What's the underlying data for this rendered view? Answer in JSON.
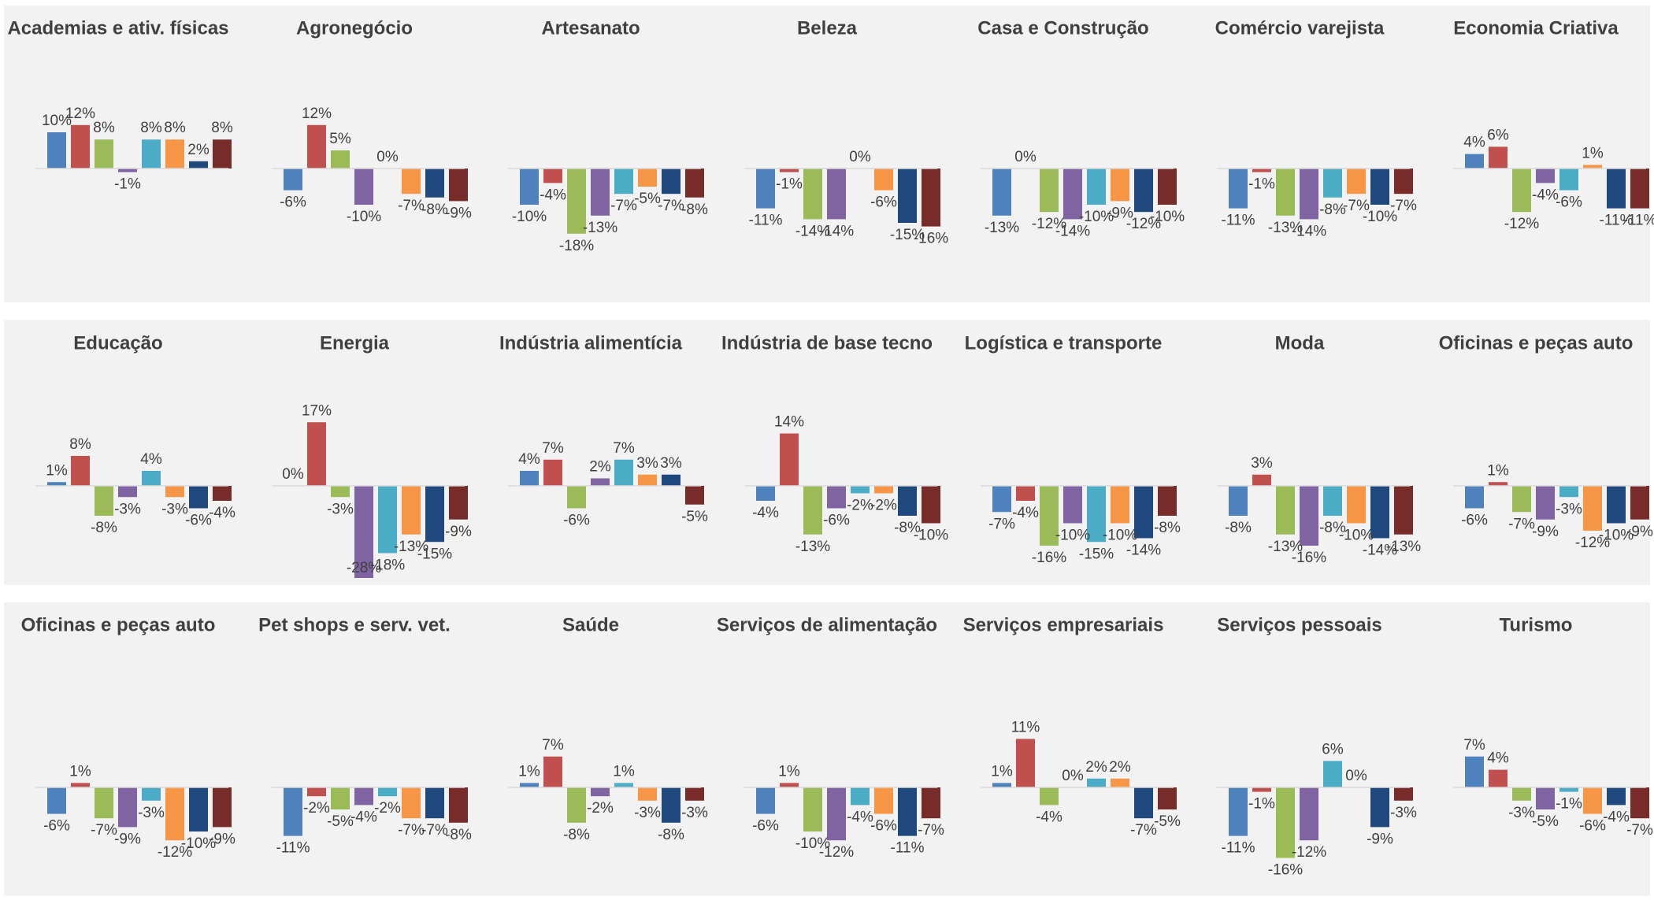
{
  "chart_data": [
    {
      "type": "bar",
      "title": "Academias e ativ. físicas",
      "values": [
        10,
        12,
        8,
        -1,
        8,
        8,
        2,
        8
      ],
      "value_labels": [
        "10%",
        "12%",
        "8%",
        "-1%",
        "8%",
        "8%",
        "2%",
        "8%"
      ],
      "colors": [
        "#4f81bd",
        "#c0504d",
        "#9bbb59",
        "#8064a2",
        "#4bacc6",
        "#f79646",
        "#1f497d",
        "#772c2a"
      ]
    },
    {
      "type": "bar",
      "title": "Agronegócio",
      "values": [
        -6,
        12,
        5,
        -10,
        0,
        -7,
        -8,
        -9
      ],
      "value_labels": [
        "-6%",
        "12%",
        "5%",
        "-10%",
        "0%",
        "-7%",
        "-8%",
        "-9%"
      ],
      "colors": [
        "#4f81bd",
        "#c0504d",
        "#9bbb59",
        "#8064a2",
        "#4bacc6",
        "#f79646",
        "#1f497d",
        "#772c2a"
      ]
    },
    {
      "type": "bar",
      "title": "Artesanato",
      "values": [
        -10,
        -4,
        -18,
        -13,
        -7,
        -5,
        -7,
        -8
      ],
      "value_labels": [
        "-10%",
        "-4%",
        "-18%",
        "-13%",
        "-7%",
        "-5%",
        "-7%",
        "-8%"
      ],
      "colors": [
        "#4f81bd",
        "#c0504d",
        "#9bbb59",
        "#8064a2",
        "#4bacc6",
        "#f79646",
        "#1f497d",
        "#772c2a"
      ]
    },
    {
      "type": "bar",
      "title": "Beleza",
      "values": [
        -11,
        -1,
        -14,
        -14,
        0,
        -6,
        -15,
        -16
      ],
      "value_labels": [
        "-11%",
        "-1%",
        "-14%",
        "-14%",
        "0%",
        "-6%",
        "-15%",
        "-16%"
      ],
      "colors": [
        "#4f81bd",
        "#c0504d",
        "#9bbb59",
        "#8064a2",
        "#4bacc6",
        "#f79646",
        "#1f497d",
        "#772c2a"
      ]
    },
    {
      "type": "bar",
      "title": "Casa e Construção",
      "values": [
        -13,
        0,
        -12,
        -14,
        -10,
        -9,
        -12,
        -10
      ],
      "value_labels": [
        "-13%",
        "0%",
        "-12%",
        "-14%",
        "-10%",
        "-9%",
        "-12%",
        "-10%"
      ],
      "colors": [
        "#4f81bd",
        "#c0504d",
        "#9bbb59",
        "#8064a2",
        "#4bacc6",
        "#f79646",
        "#1f497d",
        "#772c2a"
      ]
    },
    {
      "type": "bar",
      "title": "Comércio varejista",
      "values": [
        -11,
        -1,
        -13,
        -14,
        -8,
        -7,
        -10,
        -7
      ],
      "value_labels": [
        "-11%",
        "-1%",
        "-13%",
        "-14%",
        "-8%",
        "-7%",
        "-10%",
        "-7%"
      ],
      "colors": [
        "#4f81bd",
        "#c0504d",
        "#9bbb59",
        "#8064a2",
        "#4bacc6",
        "#f79646",
        "#1f497d",
        "#772c2a"
      ]
    },
    {
      "type": "bar",
      "title": "Economia Criativa",
      "values": [
        4,
        6,
        -12,
        -4,
        -6,
        1,
        -11,
        -11
      ],
      "value_labels": [
        "4%",
        "6%",
        "-12%",
        "-4%",
        "-6%",
        "1%",
        "-11%",
        "-11%"
      ],
      "colors": [
        "#4f81bd",
        "#c0504d",
        "#9bbb59",
        "#8064a2",
        "#4bacc6",
        "#f79646",
        "#1f497d",
        "#772c2a"
      ]
    },
    {
      "type": "bar",
      "title": "Educação",
      "values": [
        1,
        8,
        -8,
        -3,
        4,
        -3,
        -6,
        -4
      ],
      "value_labels": [
        "1%",
        "8%",
        "-8%",
        "-3%",
        "4%",
        "-3%",
        "-6%",
        "-4%"
      ],
      "colors": [
        "#4f81bd",
        "#c0504d",
        "#9bbb59",
        "#8064a2",
        "#4bacc6",
        "#f79646",
        "#1f497d",
        "#772c2a"
      ]
    },
    {
      "type": "bar",
      "title": "Energia",
      "values": [
        0,
        17,
        -3,
        -28,
        -18,
        -13,
        -15,
        -9
      ],
      "value_labels": [
        "0%",
        "17%",
        "-3%",
        "-28%",
        "-18%",
        "-13%",
        "-15%",
        "-9%"
      ],
      "colors": [
        "#4f81bd",
        "#c0504d",
        "#9bbb59",
        "#8064a2",
        "#4bacc6",
        "#f79646",
        "#1f497d",
        "#772c2a"
      ]
    },
    {
      "type": "bar",
      "title": "Indústria alimentícia",
      "values": [
        4,
        7,
        -6,
        2,
        7,
        3,
        3,
        -5
      ],
      "value_labels": [
        "4%",
        "7%",
        "-6%",
        "2%",
        "7%",
        "3%",
        "3%",
        "-5%"
      ],
      "colors": [
        "#4f81bd",
        "#c0504d",
        "#9bbb59",
        "#8064a2",
        "#4bacc6",
        "#f79646",
        "#1f497d",
        "#772c2a"
      ]
    },
    {
      "type": "bar",
      "title": "Indústria de base tecno",
      "values": [
        -4,
        14,
        -13,
        -6,
        -2,
        -2,
        -8,
        -10
      ],
      "value_labels": [
        "-4%",
        "14%",
        "-13%",
        "-6%",
        "-2%",
        "-2%",
        "-8%",
        "-10%"
      ],
      "colors": [
        "#4f81bd",
        "#c0504d",
        "#9bbb59",
        "#8064a2",
        "#4bacc6",
        "#f79646",
        "#1f497d",
        "#772c2a"
      ]
    },
    {
      "type": "bar",
      "title": "Logística e transporte",
      "values": [
        -7,
        -4,
        -16,
        -10,
        -15,
        -10,
        -14,
        -8
      ],
      "value_labels": [
        "-7%",
        "-4%",
        "-16%",
        "-10%",
        "-15%",
        "-10%",
        "-14%",
        "-8%"
      ],
      "colors": [
        "#4f81bd",
        "#c0504d",
        "#9bbb59",
        "#8064a2",
        "#4bacc6",
        "#f79646",
        "#1f497d",
        "#772c2a"
      ]
    },
    {
      "type": "bar",
      "title": "Moda",
      "values": [
        -8,
        3,
        -13,
        -16,
        -8,
        -10,
        -14,
        -13
      ],
      "value_labels": [
        "-8%",
        "3%",
        "-13%",
        "-16%",
        "-8%",
        "-10%",
        "-14%",
        "-13%"
      ],
      "colors": [
        "#4f81bd",
        "#c0504d",
        "#9bbb59",
        "#8064a2",
        "#4bacc6",
        "#f79646",
        "#1f497d",
        "#772c2a"
      ]
    },
    {
      "type": "bar",
      "title": "Oficinas e peças auto",
      "values": [
        -6,
        1,
        -7,
        -9,
        -3,
        -12,
        -10,
        -9
      ],
      "value_labels": [
        "-6%",
        "1%",
        "-7%",
        "-9%",
        "-3%",
        "-12%",
        "-10%",
        "-9%"
      ],
      "colors": [
        "#4f81bd",
        "#c0504d",
        "#9bbb59",
        "#8064a2",
        "#4bacc6",
        "#f79646",
        "#1f497d",
        "#772c2a"
      ]
    },
    {
      "type": "bar",
      "title": "Oficinas e peças auto",
      "values": [
        -6,
        1,
        -7,
        -9,
        -3,
        -12,
        -10,
        -9
      ],
      "value_labels": [
        "-6%",
        "1%",
        "-7%",
        "-9%",
        "-3%",
        "-12%",
        "-10%",
        "-9%"
      ],
      "colors": [
        "#4f81bd",
        "#c0504d",
        "#9bbb59",
        "#8064a2",
        "#4bacc6",
        "#f79646",
        "#1f497d",
        "#772c2a"
      ]
    },
    {
      "type": "bar",
      "title": "Pet shops e serv. vet.",
      "values": [
        -11,
        -2,
        -5,
        -4,
        -2,
        -7,
        -7,
        -8
      ],
      "value_labels": [
        "-11%",
        "-2%",
        "-5%",
        "-4%",
        "-2%",
        "-7%",
        "-7%",
        "-8%"
      ],
      "colors": [
        "#4f81bd",
        "#c0504d",
        "#9bbb59",
        "#8064a2",
        "#4bacc6",
        "#f79646",
        "#1f497d",
        "#772c2a"
      ]
    },
    {
      "type": "bar",
      "title": "Saúde",
      "values": [
        1,
        7,
        -8,
        -2,
        1,
        -3,
        -8,
        -3
      ],
      "value_labels": [
        "1%",
        "7%",
        "-8%",
        "-2%",
        "1%",
        "-3%",
        "-8%",
        "-3%"
      ],
      "colors": [
        "#4f81bd",
        "#c0504d",
        "#9bbb59",
        "#8064a2",
        "#4bacc6",
        "#f79646",
        "#1f497d",
        "#772c2a"
      ]
    },
    {
      "type": "bar",
      "title": "Serviços de alimentação",
      "values": [
        -6,
        1,
        -10,
        -12,
        -4,
        -6,
        -11,
        -7
      ],
      "value_labels": [
        "-6%",
        "1%",
        "-10%",
        "-12%",
        "-4%",
        "-6%",
        "-11%",
        "-7%"
      ],
      "colors": [
        "#4f81bd",
        "#c0504d",
        "#9bbb59",
        "#8064a2",
        "#4bacc6",
        "#f79646",
        "#1f497d",
        "#772c2a"
      ]
    },
    {
      "type": "bar",
      "title": "Serviços empresariais",
      "values": [
        1,
        11,
        -4,
        0,
        2,
        2,
        -7,
        -5
      ],
      "value_labels": [
        "1%",
        "11%",
        "-4%",
        "0%",
        "2%",
        "2%",
        "-7%",
        "-5%"
      ],
      "colors": [
        "#4f81bd",
        "#c0504d",
        "#9bbb59",
        "#8064a2",
        "#4bacc6",
        "#f79646",
        "#1f497d",
        "#772c2a"
      ]
    },
    {
      "type": "bar",
      "title": "Serviços pessoais",
      "values": [
        -11,
        -1,
        -16,
        -12,
        6,
        0,
        -9,
        -3
      ],
      "value_labels": [
        "-11%",
        "-1%",
        "-16%",
        "-12%",
        "6%",
        "0%",
        "-9%",
        "-3%"
      ],
      "colors": [
        "#4f81bd",
        "#c0504d",
        "#9bbb59",
        "#8064a2",
        "#4bacc6",
        "#f79646",
        "#1f497d",
        "#772c2a"
      ]
    },
    {
      "type": "bar",
      "title": "Turismo",
      "values": [
        7,
        4,
        -3,
        -5,
        -1,
        -6,
        -4,
        -7
      ],
      "value_labels": [
        "7%",
        "4%",
        "-3%",
        "-5%",
        "-1%",
        "-6%",
        "-4%",
        "-7%"
      ],
      "colors": [
        "#4f81bd",
        "#c0504d",
        "#9bbb59",
        "#8064a2",
        "#4bacc6",
        "#f79646",
        "#1f497d",
        "#772c2a"
      ]
    }
  ]
}
